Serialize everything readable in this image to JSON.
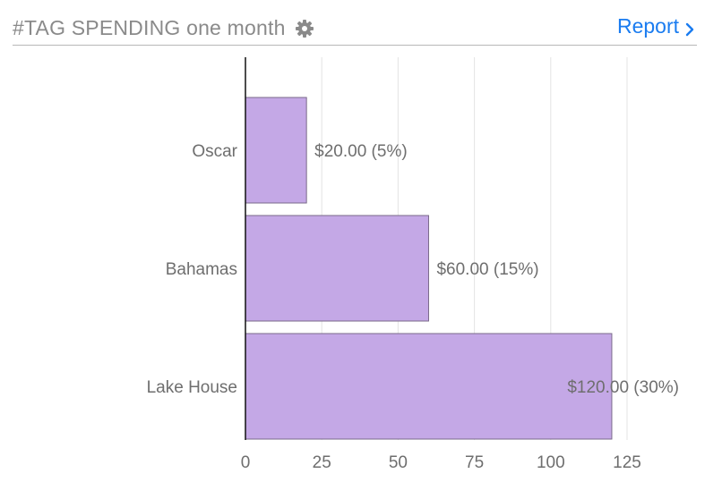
{
  "header": {
    "title": "#TAG SPENDING one month",
    "settings_icon": "gear-icon",
    "report_label": "Report",
    "report_icon": "chevron-right-icon",
    "accent_color": "#1a7cf0"
  },
  "chart_data": {
    "type": "bar",
    "orientation": "horizontal",
    "title": "",
    "xlabel": "",
    "ylabel": "",
    "categories": [
      "Oscar",
      "Bahamas",
      "Lake House"
    ],
    "values": [
      20,
      60,
      120
    ],
    "data_labels": [
      "$20.00 (5%)",
      "$60.00 (15%)",
      "$120.00 (30%)"
    ],
    "xlim": [
      0,
      125
    ],
    "x_ticks": [
      0,
      25,
      50,
      75,
      100,
      125
    ],
    "x_tick_labels": [
      "0",
      "25",
      "50",
      "75",
      "100",
      "125"
    ],
    "grid": "vertical",
    "bar_color": "#c4a8e6",
    "bar_border_color": "#7a6a8a"
  }
}
